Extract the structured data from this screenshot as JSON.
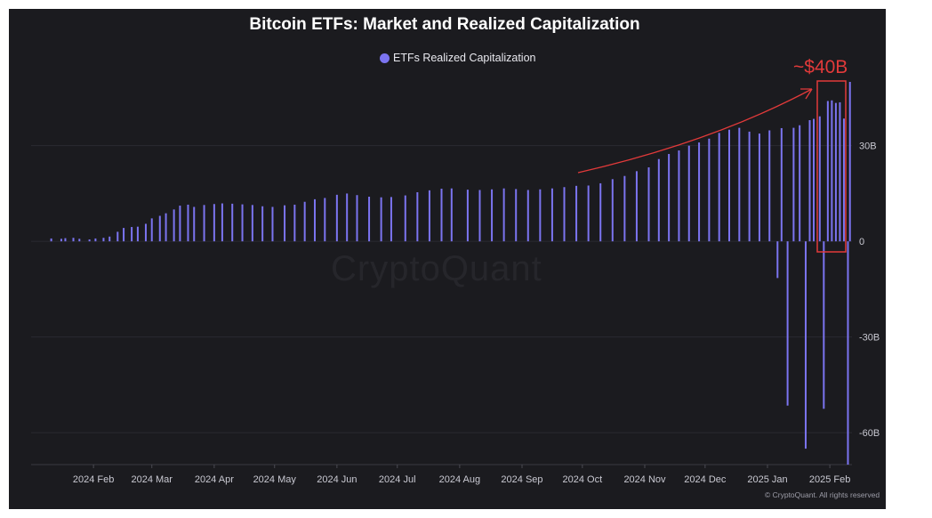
{
  "chart_title": "Bitcoin ETFs: Market and Realized Capitalization",
  "legend_label": "ETFs Realized Capitalization",
  "watermark": "CryptoQuant",
  "copyright": "© CryptoQuant. All rights reserved",
  "annotation": "~$40B",
  "colors": {
    "background": "#1b1b1f",
    "bar": "#7b74f0",
    "annotation": "#e23a3a"
  },
  "chart_data": {
    "type": "bar",
    "title": "Bitcoin ETFs: Market and Realized Capitalization",
    "series": [
      {
        "name": "ETFs Realized Capitalization",
        "points": [
          [
            "2024-01-11",
            0.9
          ],
          [
            "2024-01-16",
            0.8
          ],
          [
            "2024-01-18",
            1.0
          ],
          [
            "2024-01-22",
            1.1
          ],
          [
            "2024-01-25",
            0.8
          ],
          [
            "2024-01-30",
            0.6
          ],
          [
            "2024-02-02",
            0.9
          ],
          [
            "2024-02-06",
            1.1
          ],
          [
            "2024-02-09",
            1.5
          ],
          [
            "2024-02-13",
            3.0
          ],
          [
            "2024-02-16",
            4.2
          ],
          [
            "2024-02-20",
            4.5
          ],
          [
            "2024-02-23",
            4.6
          ],
          [
            "2024-02-27",
            5.5
          ],
          [
            "2024-03-01",
            7.2
          ],
          [
            "2024-03-05",
            8.0
          ],
          [
            "2024-03-08",
            8.8
          ],
          [
            "2024-03-12",
            10.0
          ],
          [
            "2024-03-15",
            11.2
          ],
          [
            "2024-03-19",
            11.5
          ],
          [
            "2024-03-22",
            10.8
          ],
          [
            "2024-03-27",
            11.4
          ],
          [
            "2024-04-01",
            11.7
          ],
          [
            "2024-04-05",
            11.9
          ],
          [
            "2024-04-10",
            11.8
          ],
          [
            "2024-04-15",
            11.6
          ],
          [
            "2024-04-20",
            11.4
          ],
          [
            "2024-04-25",
            11.0
          ],
          [
            "2024-04-30",
            10.8
          ],
          [
            "2024-05-06",
            11.3
          ],
          [
            "2024-05-11",
            11.5
          ],
          [
            "2024-05-16",
            12.4
          ],
          [
            "2024-05-21",
            13.2
          ],
          [
            "2024-05-26",
            13.6
          ],
          [
            "2024-06-01",
            14.6
          ],
          [
            "2024-06-06",
            15.0
          ],
          [
            "2024-06-11",
            14.5
          ],
          [
            "2024-06-17",
            14.0
          ],
          [
            "2024-06-23",
            13.8
          ],
          [
            "2024-06-28",
            13.9
          ],
          [
            "2024-07-05",
            14.4
          ],
          [
            "2024-07-11",
            15.4
          ],
          [
            "2024-07-17",
            16.0
          ],
          [
            "2024-07-23",
            16.5
          ],
          [
            "2024-07-28",
            16.6
          ],
          [
            "2024-08-05",
            16.2
          ],
          [
            "2024-08-11",
            16.1
          ],
          [
            "2024-08-17",
            16.3
          ],
          [
            "2024-08-23",
            16.6
          ],
          [
            "2024-08-29",
            16.4
          ],
          [
            "2024-09-04",
            16.1
          ],
          [
            "2024-09-10",
            16.3
          ],
          [
            "2024-09-16",
            16.6
          ],
          [
            "2024-09-22",
            17.0
          ],
          [
            "2024-09-28",
            17.4
          ],
          [
            "2024-10-04",
            17.5
          ],
          [
            "2024-10-10",
            18.2
          ],
          [
            "2024-10-16",
            19.5
          ],
          [
            "2024-10-22",
            20.5
          ],
          [
            "2024-10-28",
            22.0
          ],
          [
            "2024-11-03",
            23.2
          ],
          [
            "2024-11-08",
            25.8
          ],
          [
            "2024-11-13",
            27.4
          ],
          [
            "2024-11-18",
            28.5
          ],
          [
            "2024-11-23",
            30.0
          ],
          [
            "2024-11-28",
            31.0
          ],
          [
            "2024-12-03",
            32.2
          ],
          [
            "2024-12-08",
            34.0
          ],
          [
            "2024-12-13",
            35.0
          ],
          [
            "2024-12-18",
            35.6
          ],
          [
            "2024-12-23",
            34.4
          ],
          [
            "2024-12-28",
            33.8
          ],
          [
            "2025-01-02",
            34.8
          ],
          [
            "2025-01-06",
            -11.5
          ],
          [
            "2025-01-08",
            35.5
          ],
          [
            "2025-01-11",
            -51.5
          ],
          [
            "2025-01-14",
            35.6
          ],
          [
            "2025-01-17",
            36.4
          ],
          [
            "2025-01-20",
            -65.0
          ],
          [
            "2025-01-22",
            38.0
          ],
          [
            "2025-01-24",
            38.4
          ],
          [
            "2025-01-27",
            39.2
          ],
          [
            "2025-01-29",
            -52.5
          ],
          [
            "2025-01-31",
            44.0
          ],
          [
            "2025-02-02",
            44.2
          ],
          [
            "2025-02-04",
            43.4
          ],
          [
            "2025-02-06",
            43.6
          ],
          [
            "2025-02-08",
            38.5
          ],
          [
            "2025-02-10",
            -70.0
          ],
          [
            "2025-02-11",
            50.0
          ]
        ]
      }
    ],
    "x_ticks": [
      "2024 Feb",
      "2024 Mar",
      "2024 Apr",
      "2024 May",
      "2024 Jun",
      "2024 Jul",
      "2024 Aug",
      "2024 Sep",
      "2024 Oct",
      "2024 Nov",
      "2024 Dec",
      "2025 Jan",
      "2025 Feb"
    ],
    "y_ticks": [
      "30B",
      "0",
      "-30B",
      "-60B"
    ],
    "ylim": [
      -70,
      50
    ],
    "grid": true,
    "legend_position": "top-center"
  }
}
